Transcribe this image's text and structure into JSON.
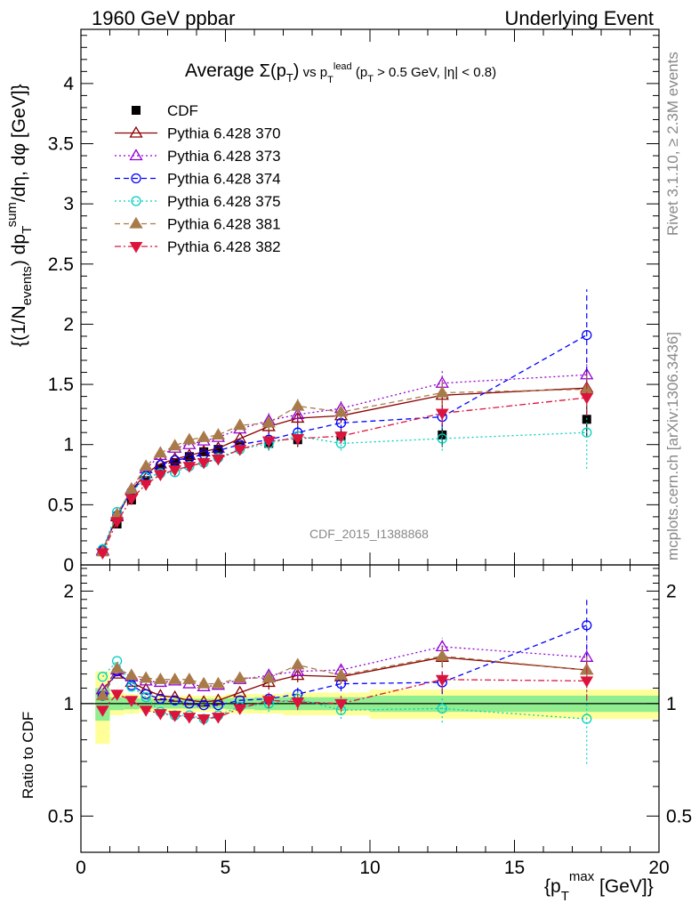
{
  "header": {
    "left": "1960 GeV ppbar",
    "right": "Underlying Event"
  },
  "side_labels": {
    "rivet": "Rivet 3.1.10, ≥ 2.3M events",
    "mcplots": "mcplots.cern.ch [arXiv:1306.3436]"
  },
  "watermark": "CDF_2015_I1388868",
  "chart_data": [
    {
      "type": "scatter",
      "title": "Average Σ(p_T) vs p_T^lead (p_T > 0.5 GeV, |η| < 0.8)",
      "ylabel": "{(1/N_events) dp_T^sum/dη, dφ [GeV]}",
      "xlim": [
        0,
        20
      ],
      "ylim": [
        0,
        4.45
      ],
      "y_tick_labels": [
        "0",
        "0.5",
        "1",
        "1.5",
        "2",
        "2.5",
        "3",
        "3.5",
        "4"
      ],
      "legend_placement": "top-left",
      "x": [
        0.75,
        1.25,
        1.75,
        2.25,
        2.75,
        3.25,
        3.75,
        4.25,
        4.75,
        5.5,
        6.5,
        7.5,
        9.0,
        12.5,
        17.5
      ],
      "series": [
        {
          "name": "CDF",
          "color": "#000000",
          "marker": "square-filled",
          "line": "none",
          "values": [
            0.11,
            0.34,
            0.54,
            0.7,
            0.8,
            0.85,
            0.9,
            0.94,
            0.96,
            0.99,
            1.01,
            1.04,
            1.07,
            1.08,
            1.21
          ]
        },
        {
          "name": "Pythia 6.428 370",
          "color": "#8b0000",
          "marker": "triangle-open",
          "line": "solid",
          "values": [
            0.12,
            0.4,
            0.62,
            0.76,
            0.84,
            0.88,
            0.91,
            0.94,
            0.97,
            1.05,
            1.15,
            1.22,
            1.24,
            1.41,
            1.47
          ]
        },
        {
          "name": "Pythia 6.428 373",
          "color": "#9400d3",
          "marker": "triangle-open",
          "line": "dotted",
          "values": [
            0.12,
            0.41,
            0.63,
            0.8,
            0.91,
            0.97,
            1.0,
            1.03,
            1.06,
            1.13,
            1.2,
            1.25,
            1.3,
            1.51,
            1.58
          ]
        },
        {
          "name": "Pythia 6.428 374",
          "color": "#0000ff",
          "marker": "circle-open",
          "line": "dashed",
          "values": [
            0.12,
            0.41,
            0.61,
            0.74,
            0.83,
            0.87,
            0.89,
            0.92,
            0.95,
            1.0,
            1.04,
            1.1,
            1.18,
            1.23,
            1.91
          ]
        },
        {
          "name": "Pythia 6.428 375",
          "color": "#00d0c0",
          "marker": "circle-open",
          "line": "dotted",
          "values": [
            0.13,
            0.44,
            0.6,
            0.73,
            0.76,
            0.77,
            0.82,
            0.85,
            0.89,
            0.96,
            1.01,
            1.07,
            1.01,
            1.05,
            1.1
          ]
        },
        {
          "name": "Pythia 6.428 381",
          "color": "#a87a4a",
          "marker": "triangle-filled",
          "line": "dashed",
          "values": [
            0.11,
            0.42,
            0.63,
            0.82,
            0.93,
            0.99,
            1.04,
            1.06,
            1.08,
            1.16,
            1.18,
            1.32,
            1.27,
            1.43,
            1.46
          ]
        },
        {
          "name": "Pythia 6.428 382",
          "color": "#dc143c",
          "marker": "triangle-down-filled",
          "line": "dashdot",
          "values": [
            0.1,
            0.36,
            0.55,
            0.67,
            0.75,
            0.79,
            0.82,
            0.85,
            0.88,
            0.96,
            1.03,
            1.05,
            1.07,
            1.26,
            1.39
          ]
        }
      ]
    },
    {
      "type": "scatter",
      "xlabel": "{p_T^max [GeV]}",
      "ylabel": "Ratio to CDF",
      "xlim": [
        0,
        20
      ],
      "ylim": [
        0.4,
        2.35
      ],
      "y_scale": "log",
      "y_tick_labels": [
        "0.5",
        "1",
        "2"
      ],
      "x_tick_labels": [
        "0",
        "5",
        "10",
        "15",
        "20"
      ],
      "x": [
        0.75,
        1.25,
        1.75,
        2.25,
        2.75,
        3.25,
        3.75,
        4.25,
        4.75,
        5.5,
        6.5,
        7.5,
        9.0,
        12.5,
        17.5
      ],
      "series": [
        {
          "name": "Pythia 6.428 370",
          "values": [
            1.09,
            1.2,
            1.14,
            1.09,
            1.05,
            1.04,
            1.02,
            1.01,
            1.02,
            1.07,
            1.14,
            1.19,
            1.18,
            1.33,
            1.23
          ]
        },
        {
          "name": "Pythia 6.428 373",
          "values": [
            1.09,
            1.23,
            1.18,
            1.15,
            1.14,
            1.15,
            1.13,
            1.11,
            1.12,
            1.16,
            1.19,
            1.22,
            1.23,
            1.42,
            1.33
          ]
        },
        {
          "name": "Pythia 6.428 374",
          "values": [
            1.05,
            1.22,
            1.12,
            1.06,
            1.03,
            1.02,
            1.0,
            0.99,
            0.99,
            1.02,
            1.03,
            1.06,
            1.13,
            1.14,
            1.62
          ]
        },
        {
          "name": "Pythia 6.428 375",
          "values": [
            1.18,
            1.3,
            1.11,
            1.04,
            0.95,
            0.93,
            0.93,
            0.91,
            0.93,
            0.98,
            1.0,
            1.03,
            0.96,
            0.97,
            0.91
          ]
        },
        {
          "name": "Pythia 6.428 381",
          "values": [
            1.05,
            1.24,
            1.19,
            1.17,
            1.16,
            1.16,
            1.16,
            1.13,
            1.13,
            1.17,
            1.17,
            1.27,
            1.19,
            1.34,
            1.23
          ]
        },
        {
          "name": "Pythia 6.428 382",
          "values": [
            0.96,
            1.06,
            1.02,
            0.96,
            0.94,
            0.93,
            0.92,
            0.91,
            0.92,
            0.97,
            1.02,
            1.01,
            1.0,
            1.16,
            1.15
          ]
        }
      ]
    }
  ]
}
